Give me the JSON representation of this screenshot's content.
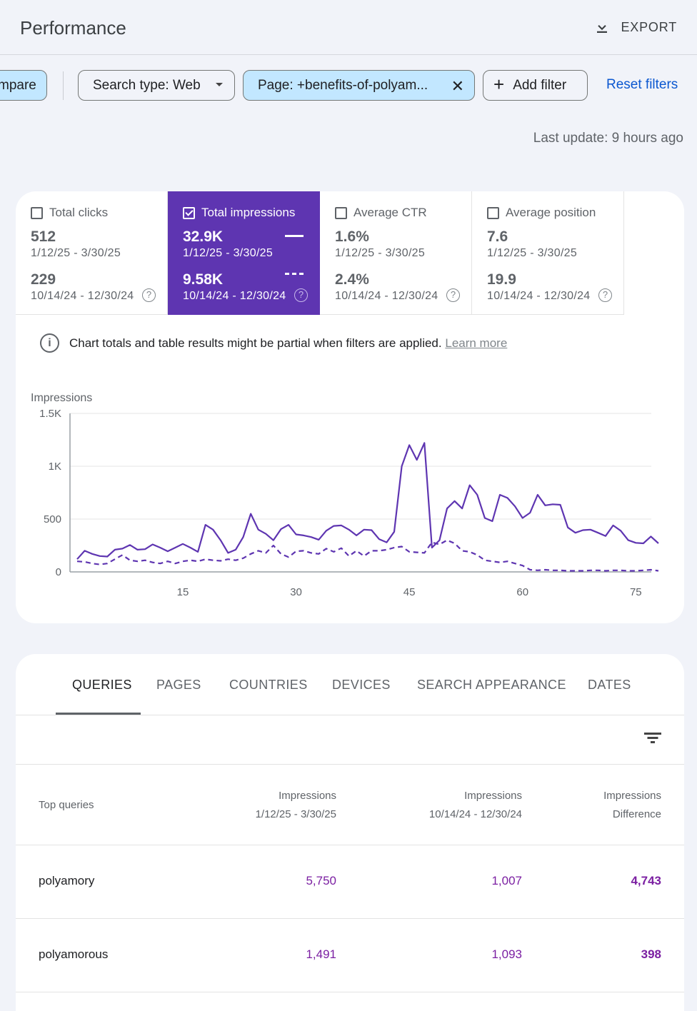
{
  "header": {
    "title": "Performance",
    "export_label": "EXPORT"
  },
  "filters": {
    "compare_label": "mpare",
    "search_type": "Search type: Web",
    "page_filter": "Page: +benefits-of-polyam...",
    "add_filter": "Add filter",
    "reset_filters": "Reset filters"
  },
  "last_update": "Last update: 9 hours ago",
  "metrics": [
    {
      "label": "Total clicks",
      "value": "512",
      "range": "1/12/25 - 3/30/25",
      "value2": "229",
      "range2": "10/14/24 - 12/30/24",
      "checked": false
    },
    {
      "label": "Total impressions",
      "value": "32.9K",
      "range": "1/12/25 - 3/30/25",
      "value2": "9.58K",
      "range2": "10/14/24 - 12/30/24",
      "checked": true
    },
    {
      "label": "Average CTR",
      "value": "1.6%",
      "range": "1/12/25 - 3/30/25",
      "value2": "2.4%",
      "range2": "10/14/24 - 12/30/24",
      "checked": false
    },
    {
      "label": "Average position",
      "value": "7.6",
      "range": "1/12/25 - 3/30/25",
      "value2": "19.9",
      "range2": "10/14/24 - 12/30/24",
      "checked": false
    }
  ],
  "notice": {
    "text": "Chart totals and table results might be partial when filters are applied.",
    "link": "Learn more"
  },
  "colors": {
    "accent": "#5e35b1",
    "link": "#0b57d0",
    "number": "#7b1fa2",
    "chip": "#c2e7ff"
  },
  "chart_data": {
    "type": "line",
    "ylabel": "Impressions",
    "ylim": [
      0,
      1500
    ],
    "yticks": [
      "0",
      "500",
      "1K",
      "1.5K"
    ],
    "ytick_values": [
      0,
      500,
      1000,
      1500
    ],
    "xticks": [
      "15",
      "30",
      "45",
      "60",
      "75"
    ],
    "xtick_values": [
      15,
      30,
      45,
      60,
      75
    ],
    "xlim": [
      1,
      78
    ],
    "series": [
      {
        "style": "solid",
        "values": [
          120,
          200,
          170,
          150,
          145,
          210,
          220,
          255,
          210,
          215,
          260,
          230,
          195,
          230,
          265,
          230,
          190,
          445,
          400,
          300,
          180,
          210,
          330,
          550,
          400,
          360,
          300,
          405,
          445,
          355,
          345,
          330,
          305,
          390,
          435,
          440,
          400,
          345,
          400,
          395,
          310,
          280,
          380,
          1000,
          1200,
          1060,
          1220,
          230,
          300,
          600,
          670,
          600,
          820,
          730,
          510,
          480,
          730,
          700,
          620,
          510,
          560,
          730,
          630,
          640,
          635,
          420,
          370,
          395,
          400,
          370,
          340,
          440,
          390,
          300,
          275,
          270,
          335,
          270
        ]
      },
      {
        "style": "dashed",
        "values": [
          100,
          95,
          80,
          70,
          80,
          120,
          160,
          110,
          100,
          110,
          90,
          80,
          100,
          80,
          100,
          110,
          100,
          120,
          110,
          105,
          120,
          110,
          130,
          170,
          200,
          180,
          250,
          170,
          140,
          195,
          200,
          180,
          170,
          220,
          190,
          225,
          150,
          200,
          150,
          200,
          200,
          210,
          230,
          240,
          190,
          185,
          180,
          280,
          260,
          300,
          270,
          200,
          190,
          160,
          110,
          100,
          90,
          100,
          80,
          60,
          20,
          15,
          20,
          15,
          15,
          10,
          10,
          10,
          15,
          15,
          10,
          15,
          15,
          10,
          10,
          15,
          20,
          10
        ]
      }
    ]
  },
  "tabs": [
    "QUERIES",
    "PAGES",
    "COUNTRIES",
    "DEVICES",
    "SEARCH APPEARANCE",
    "DATES"
  ],
  "table": {
    "headers": {
      "query": "Top queries",
      "imp_current": "Impressions",
      "imp_current_range": "1/12/25 - 3/30/25",
      "imp_prev": "Impressions",
      "imp_prev_range": "10/14/24 - 12/30/24",
      "diff": "Impressions",
      "diff_sub": "Difference"
    },
    "rows": [
      {
        "query": "polyamory",
        "current": "5,750",
        "previous": "1,007",
        "difference": "4,743"
      },
      {
        "query": "polyamorous",
        "current": "1,491",
        "previous": "1,093",
        "difference": "398"
      }
    ]
  }
}
